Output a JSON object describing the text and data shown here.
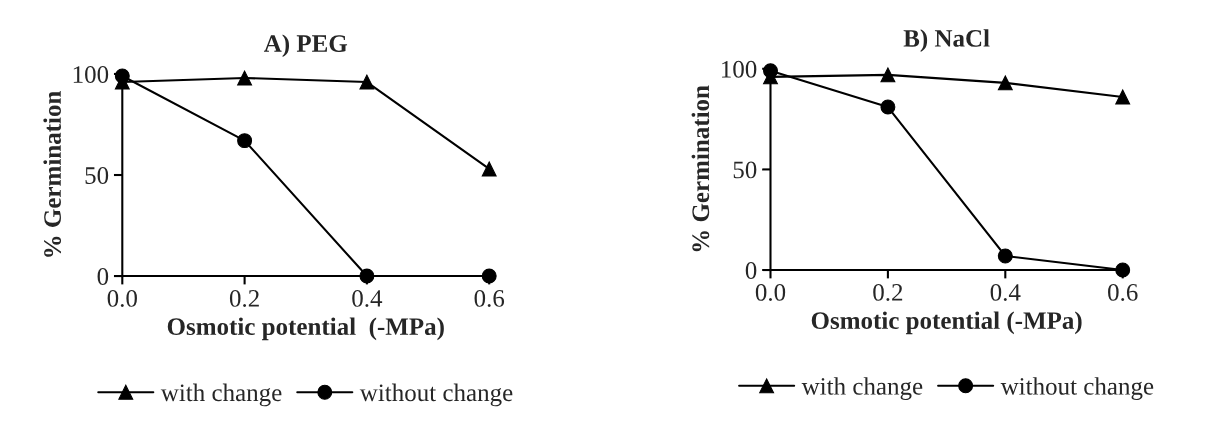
{
  "chart_data": [
    {
      "type": "line",
      "title": "A) PEG",
      "xlabel": "Osmotic potential  (-MPa)",
      "ylabel": "% Germination",
      "x": [
        0.0,
        0.2,
        0.4,
        0.6
      ],
      "xlim": [
        0,
        0.6
      ],
      "ylim": [
        0,
        100
      ],
      "xticks": [
        {
          "value": 0,
          "label": "0.0"
        },
        0.2,
        0.4,
        0.6
      ],
      "yticks": [
        0,
        50,
        100
      ],
      "legend": "bottom",
      "grid": false,
      "series": [
        {
          "name": "with change",
          "color": "#000000",
          "marker": "triangle",
          "values": [
            96,
            98,
            96,
            53
          ]
        },
        {
          "name": "without change",
          "color": "#000000",
          "marker": "circle",
          "values": [
            99,
            67,
            0,
            0
          ]
        }
      ]
    },
    {
      "type": "line",
      "title": "B) NaCl",
      "xlabel": "Osmotic potential (-MPa)",
      "ylabel": "% Germination",
      "x": [
        0.0,
        0.2,
        0.4,
        0.6
      ],
      "xlim": [
        0,
        0.6
      ],
      "ylim": [
        0,
        100
      ],
      "xticks": [
        {
          "value": 0,
          "label": "0.0"
        },
        0.2,
        0.4,
        0.6
      ],
      "yticks": [
        0,
        50,
        100
      ],
      "legend": "bottom",
      "grid": false,
      "series": [
        {
          "name": "with change",
          "color": "#000000",
          "marker": "triangle",
          "values": [
            96,
            97,
            93,
            86
          ]
        },
        {
          "name": "without change",
          "color": "#000000",
          "marker": "circle",
          "values": [
            99,
            81,
            7,
            0
          ]
        }
      ]
    }
  ]
}
